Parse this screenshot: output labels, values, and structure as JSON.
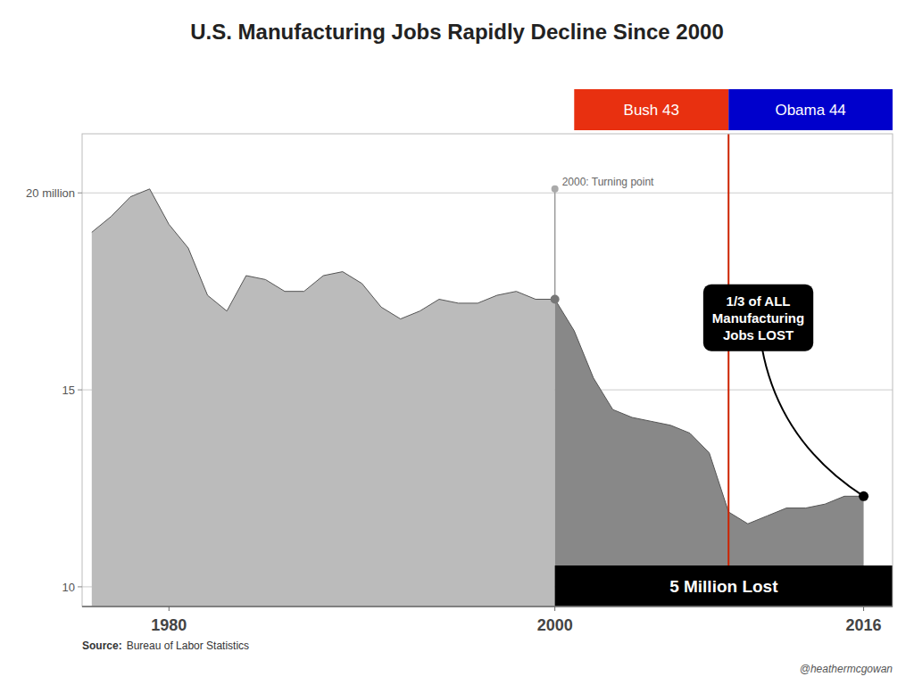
{
  "chart_data": {
    "type": "area",
    "title": "U.S. Manufacturing Jobs Rapidly Decline Since 2000",
    "x": [
      1976,
      1977,
      1978,
      1979,
      1980,
      1981,
      1982,
      1983,
      1984,
      1985,
      1986,
      1987,
      1988,
      1989,
      1990,
      1991,
      1992,
      1993,
      1994,
      1995,
      1996,
      1997,
      1998,
      1999,
      2000,
      2001,
      2002,
      2003,
      2004,
      2005,
      2006,
      2007,
      2008,
      2009,
      2010,
      2011,
      2012,
      2013,
      2014,
      2015,
      2016
    ],
    "series": [
      {
        "color": "#bbbbbb",
        "values": [
          19.0,
          19.4,
          19.9,
          20.1,
          19.2,
          18.6,
          17.4,
          17.0,
          17.9,
          17.8,
          17.5,
          17.5,
          17.9,
          18.0,
          17.7,
          17.1,
          16.8,
          17.0,
          17.3,
          17.2,
          17.2,
          17.4,
          17.5,
          17.3,
          17.3,
          null,
          null,
          null,
          null,
          null,
          null,
          null,
          null,
          null,
          null,
          null,
          null,
          null,
          null,
          null,
          null
        ]
      },
      {
        "color": "#888888",
        "values": [
          null,
          null,
          null,
          null,
          null,
          null,
          null,
          null,
          null,
          null,
          null,
          null,
          null,
          null,
          null,
          null,
          null,
          null,
          null,
          null,
          null,
          null,
          null,
          null,
          17.3,
          16.5,
          15.3,
          14.5,
          14.3,
          14.2,
          14.1,
          13.9,
          13.4,
          11.9,
          11.6,
          11.8,
          12.0,
          12.0,
          12.1,
          12.3,
          12.3
        ]
      }
    ],
    "xlim": [
      1975.5,
      2017.5
    ],
    "ylim": [
      9.5,
      21.5
    ],
    "xticks": [
      1980,
      2000,
      2016
    ],
    "yticks": [
      10,
      15,
      {
        "value": 20,
        "label": "20 million"
      }
    ],
    "grid": true,
    "periods": [
      {
        "label": "Bush 43",
        "start": 2001,
        "end": 2009,
        "color": "#e83010"
      },
      {
        "label": "Obama 44",
        "start": 2009,
        "end": 2017.5,
        "color": "#0000cc"
      }
    ],
    "divider": {
      "x": 2009,
      "color": "#cc2200"
    },
    "annotations": [
      {
        "text": "2000: Turning point",
        "x": 2000,
        "y": 17.3,
        "y_top": 20.1
      },
      {
        "text": "1/3 of ALL\nManufacturing\nJobs LOST",
        "x": 2016,
        "y": 12.3
      },
      {
        "text": "5 Million Lost",
        "x": 2000
      }
    ],
    "source_label": "Source:",
    "source": "Bureau of Labor Statistics",
    "credit": "@heathermcgowan"
  }
}
